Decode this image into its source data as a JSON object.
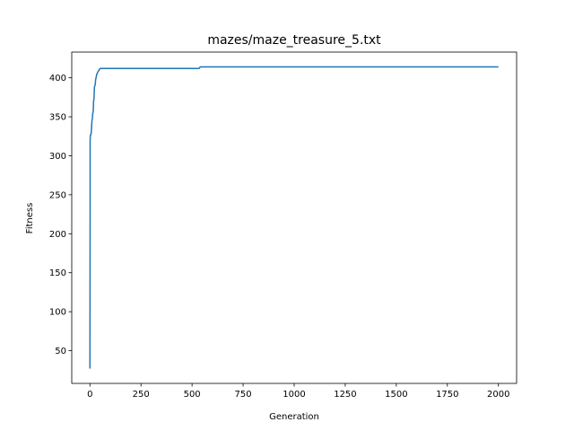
{
  "chart_data": {
    "type": "line",
    "title": "mazes/maze_treasure_5.txt",
    "xlabel": "Generation",
    "ylabel": "Fitness",
    "xlim": [
      -89,
      2089
    ],
    "ylim": [
      8,
      433
    ],
    "xticks": [
      0,
      250,
      500,
      750,
      1000,
      1250,
      1500,
      1750,
      2000
    ],
    "yticks": [
      50,
      100,
      150,
      200,
      250,
      300,
      350,
      400
    ],
    "grid": false,
    "line_color": "#1f77b4",
    "series": [
      {
        "x": [
          0,
          1,
          1,
          2,
          3,
          5,
          6,
          10,
          12,
          14,
          16,
          18,
          20,
          22,
          24,
          26,
          28,
          30,
          33,
          36,
          40,
          45,
          50,
          55,
          60,
          80,
          120,
          200,
          300,
          400,
          535,
          540,
          800,
          1000,
          1200,
          1500,
          1800,
          2000
        ],
        "y": [
          27,
          240,
          320,
          326,
          326,
          328,
          328,
          345,
          348,
          355,
          356,
          370,
          373,
          388,
          390,
          391,
          398,
          400,
          404,
          406,
          408,
          410,
          412,
          412,
          412,
          412,
          412,
          412,
          412,
          412,
          412,
          414,
          414,
          414,
          414,
          414,
          414,
          414
        ]
      }
    ]
  }
}
